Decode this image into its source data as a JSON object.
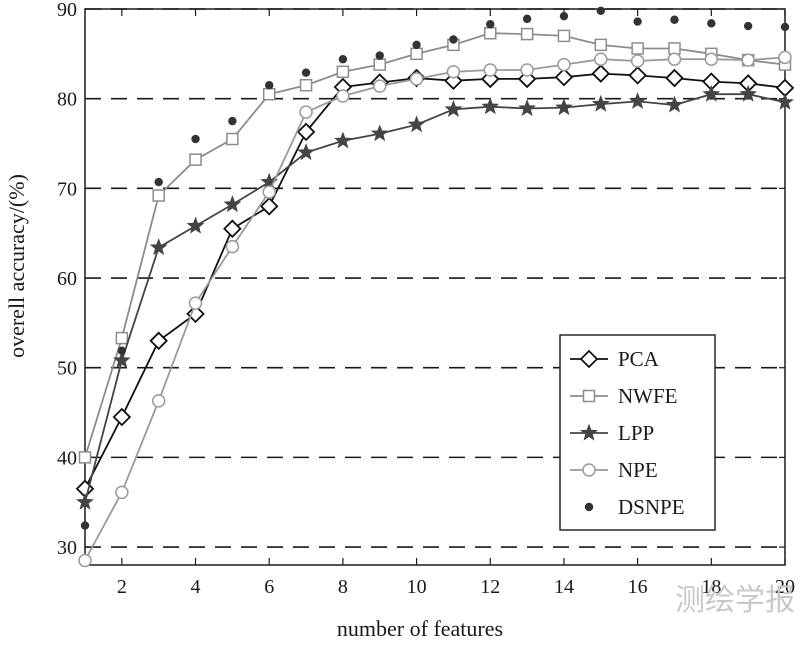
{
  "chart_data": {
    "type": "line",
    "xlabel": "number of features",
    "ylabel": "overell accuracy/(%)",
    "xlim": [
      1,
      20
    ],
    "ylim": [
      28,
      90
    ],
    "xticks": [
      2,
      4,
      6,
      8,
      10,
      12,
      14,
      16,
      18,
      20
    ],
    "yticks": [
      30,
      40,
      50,
      60,
      70,
      80,
      90
    ],
    "grid": "horizontal dashed",
    "legend_position": "lower-right",
    "x": [
      1,
      2,
      3,
      4,
      5,
      6,
      7,
      8,
      9,
      10,
      11,
      12,
      13,
      14,
      15,
      16,
      17,
      18,
      19,
      20
    ],
    "series": [
      {
        "name": "PCA",
        "marker": "diamond",
        "color": "#111111",
        "line": true,
        "values": [
          36.5,
          44.5,
          53.0,
          56.0,
          65.5,
          68.0,
          76.3,
          81.3,
          81.8,
          82.3,
          82.0,
          82.2,
          82.2,
          82.4,
          82.8,
          82.6,
          82.3,
          81.9,
          81.7,
          81.2
        ]
      },
      {
        "name": "NWFE",
        "marker": "square",
        "color": "#8c8c8c",
        "line": true,
        "values": [
          40.0,
          53.3,
          69.2,
          73.2,
          75.5,
          80.5,
          81.5,
          83.0,
          83.8,
          85.0,
          86.0,
          87.3,
          87.2,
          87.0,
          86.0,
          85.6,
          85.6,
          85.0,
          84.3,
          83.8
        ]
      },
      {
        "name": "LPP",
        "marker": "star",
        "color": "#444444",
        "line": true,
        "values": [
          35.0,
          50.8,
          63.4,
          65.8,
          68.2,
          70.7,
          74.0,
          75.3,
          76.1,
          77.1,
          78.8,
          79.1,
          78.9,
          79.0,
          79.4,
          79.7,
          79.3,
          80.5,
          80.5,
          79.6
        ]
      },
      {
        "name": "NPE",
        "marker": "circle-open",
        "color": "#9a9a9a",
        "line": true,
        "values": [
          28.5,
          36.1,
          46.3,
          57.2,
          63.5,
          69.6,
          78.5,
          80.3,
          81.4,
          82.2,
          83.0,
          83.2,
          83.2,
          83.8,
          84.4,
          84.2,
          84.4,
          84.4,
          84.3,
          84.6
        ]
      },
      {
        "name": "DSNPE",
        "marker": "dot",
        "color": "#333333",
        "line": false,
        "values": [
          32.4,
          51.9,
          70.7,
          75.5,
          77.5,
          81.5,
          82.9,
          84.4,
          84.8,
          86.0,
          86.6,
          88.3,
          88.9,
          89.2,
          89.8,
          88.6,
          88.8,
          88.4,
          88.1,
          88.0
        ]
      }
    ]
  },
  "watermark": "测绘学报"
}
